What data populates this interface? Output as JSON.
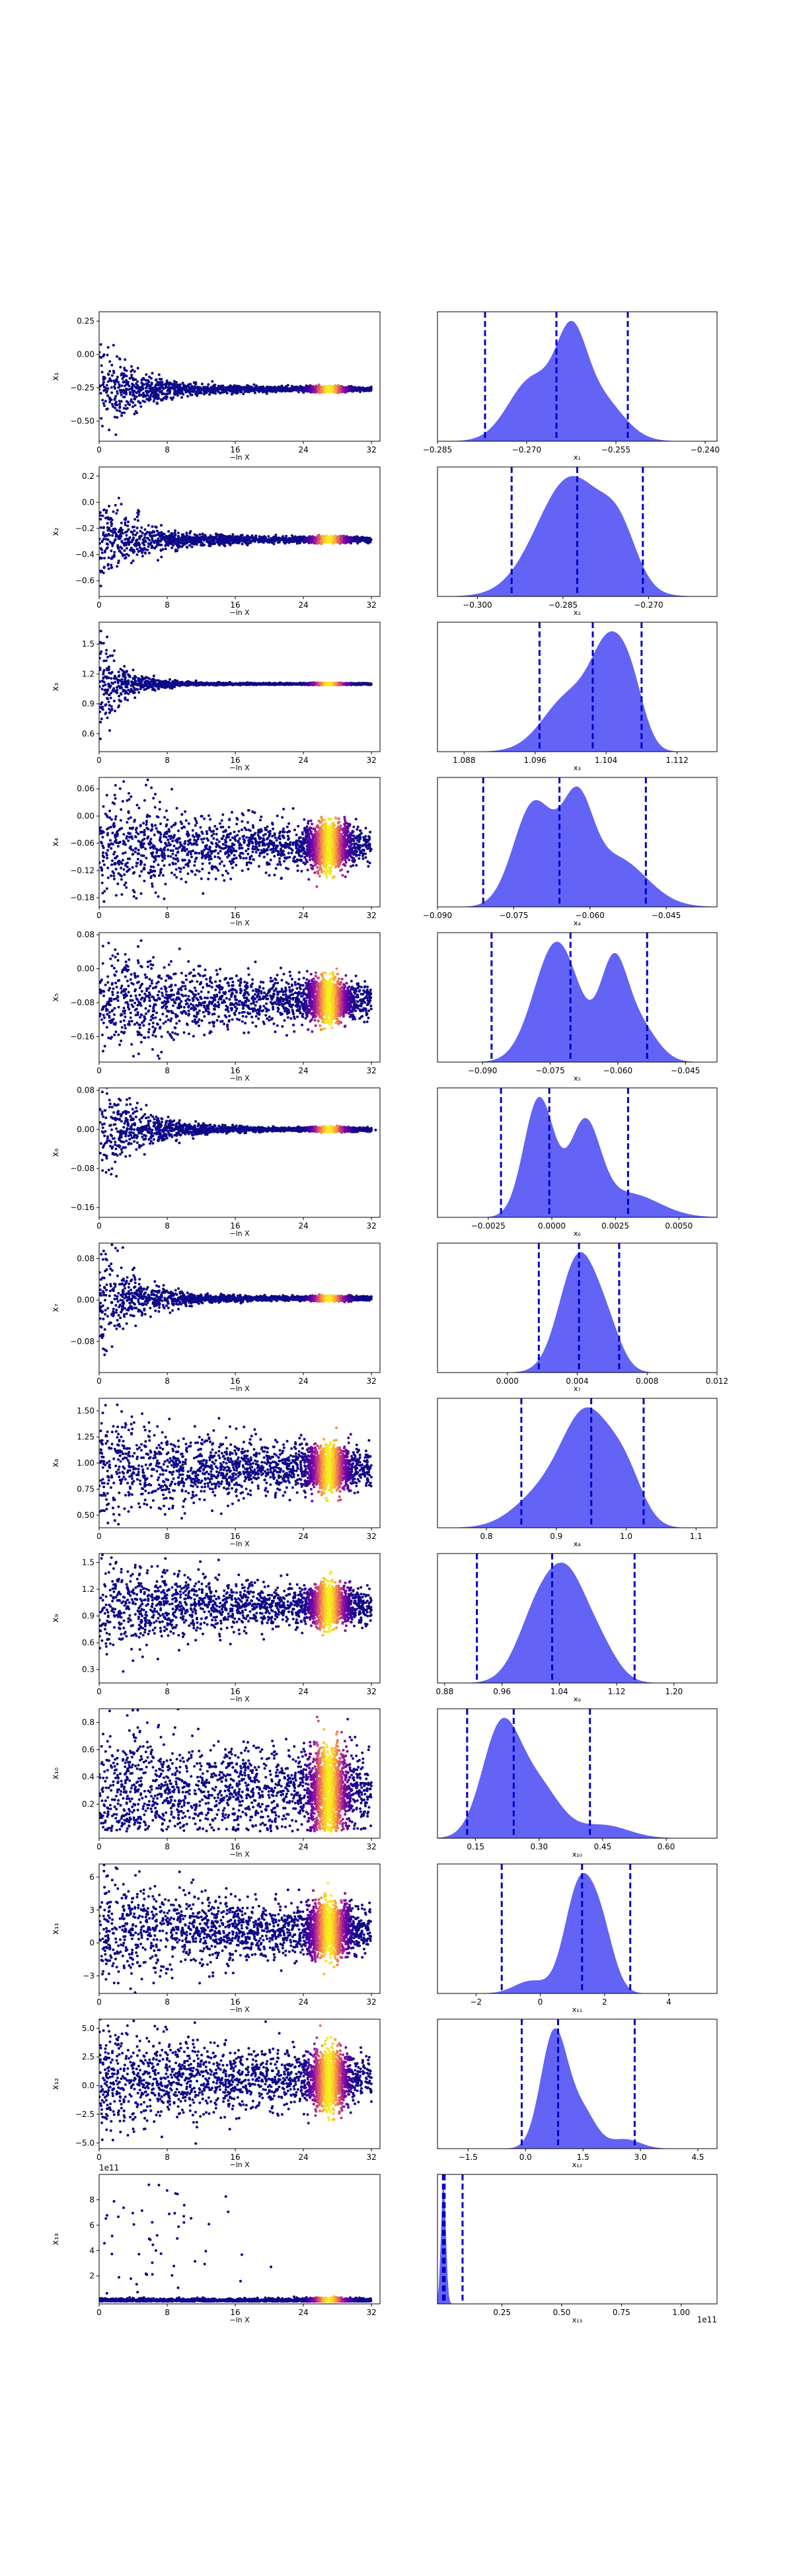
{
  "figure": {
    "title": ""
  },
  "colors": {
    "kde_fill": "#5b5bf5",
    "quantile_line": "#0000cc",
    "scatter_low": "#0d0887",
    "scatter_high": "#f0f921"
  },
  "chart_data": [
    {
      "type": "scatter",
      "row": 1,
      "ylabel": "x₁",
      "sublabel": "",
      "xlabel": "−ln X",
      "xlim": [
        0,
        33
      ],
      "xticks": [
        0,
        8,
        16,
        24,
        32
      ],
      "ylim": [
        -0.65,
        0.32
      ],
      "yticks": [
        0.25,
        0.0,
        -0.25,
        -0.5
      ],
      "ytick_labels": [
        "0.25",
        "0.00",
        "−0.25",
        "−0.50"
      ],
      "offset_text": "",
      "center": -0.26,
      "spread0": 0.16,
      "spreadEnd": 0.008,
      "decay": 0.2,
      "plateau_from": 16,
      "density_peak": 27,
      "grid": false
    },
    {
      "type": "kde",
      "row": 1,
      "xlabel": "x₁",
      "xlim": [
        -0.285,
        -0.238
      ],
      "xticks": [
        -0.285,
        -0.27,
        -0.255,
        -0.24
      ],
      "xtick_labels": [
        "−0.285",
        "−0.270",
        "−0.255",
        "−0.240"
      ],
      "quantiles": [
        -0.277,
        -0.265,
        -0.253
      ],
      "bumps": [
        [
          -0.269,
          0.004,
          0.7
        ],
        [
          -0.2625,
          0.0025,
          0.9
        ],
        [
          -0.258,
          0.004,
          0.5
        ]
      ]
    },
    {
      "type": "scatter",
      "row": 2,
      "ylabel": "x₂",
      "sublabel": "",
      "xlabel": "−ln X",
      "xlim": [
        0,
        33
      ],
      "xticks": [
        0,
        8,
        16,
        24,
        32
      ],
      "ylim": [
        -0.72,
        0.27
      ],
      "yticks": [
        0.2,
        0.0,
        -0.2,
        -0.4,
        -0.6
      ],
      "ytick_labels": [
        "0.2",
        "0.0",
        "−0.2",
        "−0.4",
        "−0.6"
      ],
      "offset_text": "",
      "center": -0.285,
      "spread0": 0.2,
      "spreadEnd": 0.01,
      "decay": 0.22,
      "plateau_from": 16,
      "density_peak": 27,
      "grid": false
    },
    {
      "type": "kde",
      "row": 2,
      "xlabel": "x₂",
      "xlim": [
        -0.307,
        -0.258
      ],
      "xticks": [
        -0.3,
        -0.285,
        -0.27
      ],
      "xtick_labels": [
        "−0.300",
        "−0.285",
        "−0.270"
      ],
      "quantiles": [
        -0.294,
        -0.2825,
        -0.271
      ],
      "bumps": [
        [
          -0.2835,
          0.006,
          1.0
        ],
        [
          -0.275,
          0.003,
          0.35
        ]
      ]
    },
    {
      "type": "scatter",
      "row": 3,
      "ylabel": "x₃",
      "sublabel": "",
      "xlabel": "−ln X",
      "xlim": [
        0,
        33
      ],
      "xticks": [
        0,
        8,
        16,
        24,
        32
      ],
      "ylim": [
        0.42,
        1.72
      ],
      "yticks": [
        1.5,
        1.2,
        0.9,
        0.6
      ],
      "ytick_labels": [
        "1.5",
        "1.2",
        "0.9",
        "0.6"
      ],
      "offset_text": "",
      "center": 1.1,
      "spread0": 0.25,
      "spreadEnd": 0.004,
      "decay": 0.35,
      "plateau_from": 16,
      "density_peak": 27,
      "grid": false
    },
    {
      "type": "kde",
      "row": 3,
      "xlabel": "x₃",
      "xlim": [
        1.085,
        1.1165
      ],
      "xticks": [
        1.088,
        1.096,
        1.104,
        1.112
      ],
      "xtick_labels": [
        "1.088",
        "1.096",
        "1.104",
        "1.112"
      ],
      "quantiles": [
        1.0965,
        1.1025,
        1.108
      ],
      "bumps": [
        [
          1.1,
          0.003,
          0.55
        ],
        [
          1.1045,
          0.002,
          0.9
        ],
        [
          1.107,
          0.0015,
          0.4
        ]
      ]
    },
    {
      "type": "scatter",
      "row": 4,
      "ylabel": "x₄",
      "sublabel": "",
      "xlabel": "−ln X",
      "xlim": [
        0,
        33
      ],
      "xticks": [
        0,
        8,
        16,
        24,
        32
      ],
      "ylim": [
        -0.2,
        0.085
      ],
      "yticks": [
        0.06,
        0.0,
        -0.06,
        -0.12,
        -0.18
      ],
      "ytick_labels": [
        "0.06",
        "0.00",
        "−0.06",
        "−0.12",
        "−0.18"
      ],
      "offset_text": "",
      "center": -0.066,
      "spread0": 0.065,
      "spreadEnd": 0.018,
      "decay": 0.08,
      "plateau_from": 24,
      "density_peak": 27,
      "grid": false
    },
    {
      "type": "kde",
      "row": 4,
      "xlabel": "x₄",
      "xlim": [
        -0.09,
        -0.035
      ],
      "xticks": [
        -0.09,
        -0.075,
        -0.06,
        -0.045
      ],
      "xtick_labels": [
        "−0.090",
        "−0.075",
        "−0.060",
        "−0.045"
      ],
      "quantiles": [
        -0.081,
        -0.066,
        -0.049
      ],
      "bumps": [
        [
          -0.071,
          0.004,
          0.95
        ],
        [
          -0.0625,
          0.003,
          0.8
        ],
        [
          -0.055,
          0.006,
          0.45
        ]
      ]
    },
    {
      "type": "scatter",
      "row": 5,
      "ylabel": "x₅",
      "sublabel": "",
      "xlabel": "−ln X",
      "xlim": [
        0,
        33
      ],
      "xticks": [
        0,
        8,
        16,
        24,
        32
      ],
      "ylim": [
        -0.22,
        0.085
      ],
      "yticks": [
        0.08,
        0.0,
        -0.08,
        -0.16
      ],
      "ytick_labels": [
        "0.08",
        "0.00",
        "−0.08",
        "−0.16"
      ],
      "offset_text": "",
      "center": -0.075,
      "spread0": 0.065,
      "spreadEnd": 0.018,
      "decay": 0.08,
      "plateau_from": 24,
      "density_peak": 27,
      "grid": false
    },
    {
      "type": "kde",
      "row": 5,
      "xlabel": "x₅",
      "xlim": [
        -0.1,
        -0.038
      ],
      "xticks": [
        -0.09,
        -0.075,
        -0.06,
        -0.045
      ],
      "xtick_labels": [
        "−0.090",
        "−0.075",
        "−0.060",
        "−0.045"
      ],
      "quantiles": [
        -0.088,
        -0.0705,
        -0.0535
      ],
      "bumps": [
        [
          -0.0735,
          0.005,
          0.95
        ],
        [
          -0.061,
          0.003,
          0.7
        ],
        [
          -0.0555,
          0.004,
          0.3
        ]
      ]
    },
    {
      "type": "scatter",
      "row": 6,
      "ylabel": "x₆",
      "sublabel": "",
      "xlabel": "−ln X",
      "xlim": [
        0,
        33
      ],
      "xticks": [
        0,
        8,
        16,
        24,
        32
      ],
      "ylim": [
        -0.18,
        0.085
      ],
      "yticks": [
        0.08,
        0.0,
        -0.08,
        -0.16
      ],
      "ytick_labels": [
        "0.08",
        "0.00",
        "−0.08",
        "−0.16"
      ],
      "offset_text": "",
      "center": 0.0,
      "spread0": 0.07,
      "spreadEnd": 0.002,
      "decay": 0.25,
      "plateau_from": 16,
      "density_peak": 27,
      "grid": false
    },
    {
      "type": "kde",
      "row": 6,
      "xlabel": "x₆",
      "xlim": [
        -0.0045,
        0.0065
      ],
      "xticks": [
        -0.0025,
        0.0,
        0.0025,
        0.005
      ],
      "xtick_labels": [
        "−0.0025",
        "0.0000",
        "0.0025",
        "0.0050"
      ],
      "quantiles": [
        -0.002,
        -0.0001,
        0.003
      ],
      "bumps": [
        [
          -0.0005,
          0.0006,
          1.0
        ],
        [
          0.0013,
          0.0006,
          0.75
        ],
        [
          0.003,
          0.0012,
          0.2
        ]
      ]
    },
    {
      "type": "scatter",
      "row": 7,
      "ylabel": "x₇",
      "sublabel": "",
      "xlabel": "−ln X",
      "xlim": [
        0,
        33
      ],
      "xticks": [
        0,
        8,
        16,
        24,
        32
      ],
      "ylim": [
        -0.14,
        0.11
      ],
      "yticks": [
        0.08,
        0.0,
        -0.08
      ],
      "ytick_labels": [
        "0.08",
        "0.00",
        "−0.08"
      ],
      "offset_text": "",
      "center": 0.003,
      "spread0": 0.06,
      "spreadEnd": 0.002,
      "decay": 0.25,
      "plateau_from": 16,
      "density_peak": 27,
      "grid": false
    },
    {
      "type": "kde",
      "row": 7,
      "xlabel": "x₇",
      "xlim": [
        -0.004,
        0.012
      ],
      "xticks": [
        0.0,
        0.004,
        0.008,
        0.012
      ],
      "xtick_labels": [
        "0.000",
        "0.004",
        "0.008",
        "0.012"
      ],
      "quantiles": [
        0.0018,
        0.0041,
        0.0064
      ],
      "bumps": [
        [
          0.0041,
          0.0011,
          1.0
        ],
        [
          0.0058,
          0.0008,
          0.25
        ]
      ]
    },
    {
      "type": "scatter",
      "row": 8,
      "ylabel": "x₈",
      "sublabel": "",
      "xlabel": "−ln X",
      "xlim": [
        0,
        33
      ],
      "xticks": [
        0,
        8,
        16,
        24,
        32
      ],
      "ylim": [
        0.38,
        1.62
      ],
      "yticks": [
        1.5,
        1.25,
        1.0,
        0.75,
        0.5
      ],
      "ytick_labels": [
        "1.50",
        "1.25",
        "1.00",
        "0.75",
        "0.50"
      ],
      "offset_text": "",
      "center": 0.95,
      "spread0": 0.28,
      "spreadEnd": 0.07,
      "decay": 0.07,
      "plateau_from": 24,
      "density_peak": 27,
      "grid": false
    },
    {
      "type": "kde",
      "row": 8,
      "xlabel": "x₈",
      "xlim": [
        0.73,
        1.13
      ],
      "xticks": [
        0.8,
        0.9,
        1.0,
        1.1
      ],
      "xtick_labels": [
        "0.8",
        "0.9",
        "1.0",
        "1.1"
      ],
      "quantiles": [
        0.85,
        0.95,
        1.025
      ],
      "bumps": [
        [
          0.945,
          0.035,
          1.0
        ],
        [
          0.88,
          0.04,
          0.3
        ],
        [
          1.0,
          0.025,
          0.4
        ]
      ]
    },
    {
      "type": "scatter",
      "row": 9,
      "ylabel": "x₉",
      "sublabel": "",
      "xlabel": "−ln X",
      "xlim": [
        0,
        33
      ],
      "xticks": [
        0,
        8,
        16,
        24,
        32
      ],
      "ylim": [
        0.15,
        1.6
      ],
      "yticks": [
        1.5,
        1.2,
        0.9,
        0.6,
        0.3
      ],
      "ytick_labels": [
        "1.5",
        "1.2",
        "0.9",
        "0.6",
        "0.3"
      ],
      "offset_text": "",
      "center": 1.02,
      "spread0": 0.3,
      "spreadEnd": 0.07,
      "decay": 0.07,
      "plateau_from": 24,
      "density_peak": 27,
      "grid": false
    },
    {
      "type": "kde",
      "row": 9,
      "xlabel": "x₉",
      "xlim": [
        0.87,
        1.26
      ],
      "xticks": [
        0.88,
        0.96,
        1.04,
        1.12,
        1.2
      ],
      "xtick_labels": [
        "0.88",
        "0.96",
        "1.04",
        "1.12",
        "1.20"
      ],
      "quantiles": [
        0.925,
        1.03,
        1.145
      ],
      "bumps": [
        [
          1.015,
          0.03,
          1.0
        ],
        [
          1.055,
          0.025,
          0.9
        ],
        [
          1.095,
          0.025,
          0.45
        ]
      ]
    },
    {
      "type": "scatter",
      "row": 10,
      "ylabel": "x₁₀",
      "sublabel": "",
      "xlabel": "−ln X",
      "xlim": [
        0,
        33
      ],
      "xticks": [
        0,
        8,
        16,
        24,
        32
      ],
      "ylim": [
        -0.05,
        0.9
      ],
      "yticks": [
        0.8,
        0.6,
        0.4,
        0.2
      ],
      "ytick_labels": [
        "0.8",
        "0.6",
        "0.4",
        "0.2"
      ],
      "offset_text": "",
      "center": 0.3,
      "spread0": 0.25,
      "spreadEnd": 0.12,
      "decay": 0.05,
      "plateau_from": 24,
      "density_peak": 27,
      "grid": false,
      "positive": true
    },
    {
      "type": "kde",
      "row": 10,
      "xlabel": "x₁₀",
      "xlim": [
        0.06,
        0.72
      ],
      "xticks": [
        0.15,
        0.3,
        0.45,
        0.6
      ],
      "xtick_labels": [
        "0.15",
        "0.30",
        "0.45",
        "0.60"
      ],
      "quantiles": [
        0.13,
        0.24,
        0.42
      ],
      "bumps": [
        [
          0.21,
          0.045,
          1.0
        ],
        [
          0.3,
          0.05,
          0.45
        ],
        [
          0.45,
          0.06,
          0.12
        ]
      ]
    },
    {
      "type": "scatter",
      "row": 11,
      "ylabel": "x₁₁",
      "sublabel": "",
      "xlabel": "−ln X",
      "xlim": [
        0,
        33
      ],
      "xticks": [
        0,
        8,
        16,
        24,
        32
      ],
      "ylim": [
        -4.6,
        7.2
      ],
      "yticks": [
        6,
        3,
        0,
        -3
      ],
      "ytick_labels": [
        "6",
        "3",
        "0",
        "−3"
      ],
      "offset_text": "",
      "center": 1.2,
      "spread0": 2.6,
      "spreadEnd": 0.8,
      "decay": 0.06,
      "plateau_from": 24,
      "density_peak": 27,
      "grid": false
    },
    {
      "type": "kde",
      "row": 11,
      "xlabel": "x₁₁",
      "xlim": [
        -3.2,
        5.5
      ],
      "xticks": [
        -2,
        0,
        2,
        4
      ],
      "xtick_labels": [
        "−2",
        "0",
        "2",
        "4"
      ],
      "quantiles": [
        -1.2,
        1.3,
        2.8
      ],
      "bumps": [
        [
          1.2,
          0.45,
          1.0
        ],
        [
          1.9,
          0.4,
          0.55
        ],
        [
          -0.3,
          0.5,
          0.12
        ]
      ]
    },
    {
      "type": "scatter",
      "row": 12,
      "ylabel": "x₁₂",
      "sublabel": "",
      "xlabel": "−ln X",
      "xlim": [
        0,
        33
      ],
      "xticks": [
        0,
        8,
        16,
        24,
        32
      ],
      "ylim": [
        -5.5,
        5.8
      ],
      "yticks": [
        5.0,
        2.5,
        0.0,
        -2.5,
        -5.0
      ],
      "ytick_labels": [
        "5.0",
        "2.5",
        "0.0",
        "−2.5",
        "−5.0"
      ],
      "offset_text": "",
      "center": 0.5,
      "spread0": 2.3,
      "spreadEnd": 0.8,
      "decay": 0.05,
      "plateau_from": 24,
      "density_peak": 27,
      "grid": false
    },
    {
      "type": "kde",
      "row": 12,
      "xlabel": "x₁₂",
      "xlim": [
        -2.3,
        5.0
      ],
      "xticks": [
        -1.5,
        0.0,
        1.5,
        3.0,
        4.5
      ],
      "xtick_labels": [
        "−1.5",
        "0.0",
        "1.5",
        "3.0",
        "4.5"
      ],
      "quantiles": [
        -0.1,
        0.85,
        2.85
      ],
      "bumps": [
        [
          0.75,
          0.35,
          1.0
        ],
        [
          1.5,
          0.35,
          0.3
        ],
        [
          2.6,
          0.4,
          0.08
        ]
      ]
    },
    {
      "type": "scatter",
      "row": 13,
      "ylabel": "x₁₃",
      "sublabel": "",
      "xlabel": "−ln X",
      "xlim": [
        0,
        33
      ],
      "xticks": [
        0,
        8,
        16,
        24,
        32
      ],
      "ylim": [
        -0.2,
        10.0
      ],
      "yticks": [
        8,
        6,
        4,
        2
      ],
      "ytick_labels": [
        "8",
        "6",
        "4",
        "2"
      ],
      "offset_text": "1e11",
      "center": 0.15,
      "spread0": 0.0,
      "spreadEnd": 0.0,
      "decay": 0.1,
      "plateau_from": 24,
      "density_peak": 27,
      "grid": false,
      "heavy_tail": true
    },
    {
      "type": "kde",
      "row": 13,
      "xlabel": "x₁₃",
      "xlim": [
        -0.02,
        1.15
      ],
      "xticks": [
        0.25,
        0.5,
        0.75,
        1.0
      ],
      "xtick_labels": [
        "0.25",
        "0.50",
        "0.75",
        "1.00"
      ],
      "offset_text": "1e11",
      "quantiles": [
        0.003,
        0.01,
        0.085
      ],
      "bumps": [
        [
          0.005,
          0.01,
          1.0
        ]
      ]
    }
  ]
}
